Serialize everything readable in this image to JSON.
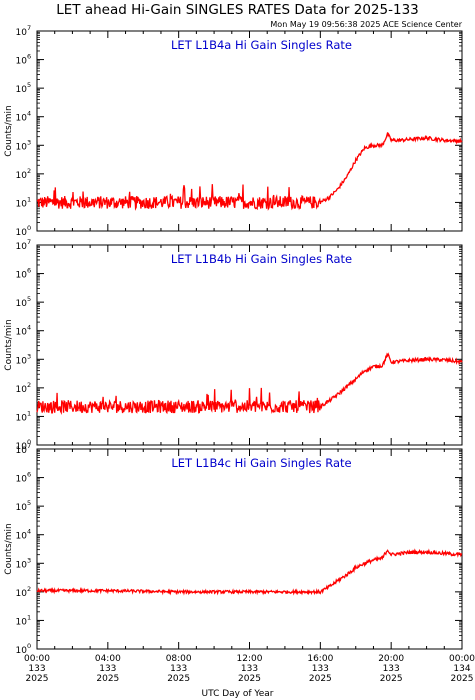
{
  "title": "LET ahead Hi-Gain SINGLES RATES Data for 2025-133",
  "timestamp": "Mon May 19 09:56:38 2025 ACE Science Center",
  "colors": {
    "series": "#ff0000",
    "panel_title": "#0000cc",
    "axes": "#000000"
  },
  "chart_data": [
    {
      "type": "line",
      "title": "LET L1B4a Hi Gain Singles Rate",
      "ylabel": "Counts/min",
      "xlabel": "UTC Day of Year",
      "yscale": "log",
      "ylim": [
        1,
        10000000
      ],
      "xlim": [
        0,
        24
      ],
      "grid": false,
      "x": [
        0,
        2,
        4,
        6,
        8,
        10,
        12,
        14,
        15,
        16,
        16.5,
        17,
        17.5,
        18,
        18.5,
        19,
        19.5,
        19.8,
        20,
        20.5,
        21,
        22,
        23,
        24
      ],
      "values": [
        10,
        10,
        10,
        10,
        10,
        10,
        10,
        10,
        10,
        10,
        15,
        30,
        80,
        300,
        800,
        1000,
        1000,
        2500,
        1500,
        1500,
        1600,
        1800,
        1500,
        1400
      ]
    },
    {
      "type": "line",
      "title": "LET L1B4b Hi Gain Singles Rate",
      "ylabel": "Counts/min",
      "xlabel": "UTC Day of Year",
      "yscale": "log",
      "ylim": [
        1,
        10000000
      ],
      "xlim": [
        0,
        24
      ],
      "grid": false,
      "x": [
        0,
        2,
        4,
        6,
        8,
        10,
        12,
        14,
        15,
        16,
        16.5,
        17,
        17.5,
        18,
        18.5,
        19,
        19.5,
        19.8,
        20,
        20.5,
        21,
        22,
        23,
        24
      ],
      "values": [
        22,
        22,
        22,
        22,
        22,
        22,
        22,
        22,
        22,
        22,
        35,
        60,
        110,
        200,
        400,
        550,
        600,
        1500,
        800,
        850,
        900,
        1000,
        950,
        800
      ]
    },
    {
      "type": "line",
      "title": "LET L1B4c Hi Gain Singles Rate",
      "ylabel": "Counts/min",
      "xlabel": "UTC Day of Year",
      "yscale": "log",
      "ylim": [
        1,
        10000000
      ],
      "xlim": [
        0,
        24
      ],
      "grid": false,
      "x": [
        0,
        2,
        4,
        6,
        8,
        10,
        12,
        14,
        15,
        16,
        16.5,
        17,
        17.5,
        18,
        18.5,
        19,
        19.5,
        19.8,
        20,
        20.5,
        21,
        22,
        23,
        24
      ],
      "values": [
        110,
        110,
        110,
        105,
        100,
        100,
        100,
        100,
        100,
        100,
        150,
        250,
        400,
        700,
        1000,
        1300,
        1500,
        3000,
        2000,
        2200,
        2400,
        2500,
        2200,
        2000
      ]
    }
  ],
  "y_ticks": [
    {
      "base": "10",
      "exp": "0"
    },
    {
      "base": "10",
      "exp": "1"
    },
    {
      "base": "10",
      "exp": "2"
    },
    {
      "base": "10",
      "exp": "3"
    },
    {
      "base": "10",
      "exp": "4"
    },
    {
      "base": "10",
      "exp": "5"
    },
    {
      "base": "10",
      "exp": "6"
    },
    {
      "base": "10",
      "exp": "7"
    }
  ],
  "x_ticks": [
    {
      "x": 0,
      "time": "00:00",
      "doy": "133",
      "year": "2025"
    },
    {
      "x": 4,
      "time": "04:00",
      "doy": "133",
      "year": "2025"
    },
    {
      "x": 8,
      "time": "08:00",
      "doy": "133",
      "year": "2025"
    },
    {
      "x": 12,
      "time": "12:00",
      "doy": "133",
      "year": "2025"
    },
    {
      "x": 16,
      "time": "16:00",
      "doy": "133",
      "year": "2025"
    },
    {
      "x": 20,
      "time": "20:00",
      "doy": "133",
      "year": "2025"
    },
    {
      "x": 24,
      "time": "00:00",
      "doy": "134",
      "year": "2025"
    }
  ]
}
